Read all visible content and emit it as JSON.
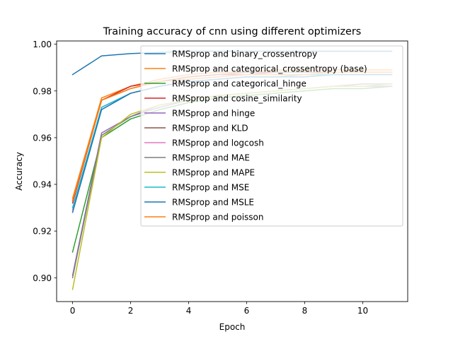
{
  "chart_data": {
    "type": "line",
    "title": "Training accuracy of cnn using different optimizers",
    "xlabel": "Epoch",
    "ylabel": "Accuracy",
    "xlim": [
      -0.55,
      11.55
    ],
    "ylim": [
      0.8898,
      1.0014
    ],
    "xticks": [
      0,
      2,
      4,
      6,
      8,
      10
    ],
    "yticks": [
      0.9,
      0.92,
      0.94,
      0.96,
      0.98,
      1.0
    ],
    "xtick_labels": [
      "0",
      "2",
      "4",
      "6",
      "8",
      "10"
    ],
    "ytick_labels": [
      "0.90",
      "0.92",
      "0.94",
      "0.96",
      "0.98",
      "1.00"
    ],
    "grid": false,
    "legend_position": "upper-right",
    "x": [
      0,
      1,
      2,
      3,
      4,
      5,
      6,
      7,
      8,
      9,
      10,
      11
    ],
    "series": [
      {
        "name": "RMSprop and binary_crossentropy",
        "color": "#1f77b4",
        "values": [
          0.987,
          0.995,
          0.996,
          0.9965,
          0.997,
          0.997,
          0.997,
          0.997,
          0.997,
          0.997,
          0.997,
          0.997
        ]
      },
      {
        "name": "RMSprop and categorical_crossentropy (base)",
        "color": "#ff7f0e",
        "values": [
          0.934,
          0.977,
          0.982,
          0.985,
          0.987,
          0.988,
          0.988,
          0.989,
          0.989,
          0.989,
          0.989,
          0.989
        ]
      },
      {
        "name": "RMSprop and categorical_hinge",
        "color": "#2ca02c",
        "values": [
          0.911,
          0.96,
          0.968,
          0.972,
          0.975,
          0.977,
          0.978,
          0.979,
          0.98,
          0.981,
          0.981,
          0.982
        ]
      },
      {
        "name": "RMSprop and cosine_similarity",
        "color": "#d62728",
        "values": [
          0.932,
          0.976,
          0.982,
          0.984,
          0.986,
          0.987,
          0.987,
          0.988,
          0.988,
          0.988,
          0.988,
          0.988
        ]
      },
      {
        "name": "RMSprop and hinge",
        "color": "#9467bd",
        "values": [
          0.901,
          0.962,
          0.969,
          0.973,
          0.976,
          0.978,
          0.979,
          0.98,
          0.981,
          0.982,
          0.982,
          0.982
        ]
      },
      {
        "name": "RMSprop and KLD",
        "color": "#8c564b",
        "values": [
          0.933,
          0.976,
          0.981,
          0.984,
          0.986,
          0.987,
          0.988,
          0.988,
          0.988,
          0.988,
          0.988,
          0.988
        ]
      },
      {
        "name": "RMSprop and logcosh",
        "color": "#e377c2",
        "values": [
          0.929,
          0.973,
          0.979,
          0.982,
          0.984,
          0.985,
          0.986,
          0.986,
          0.986,
          0.987,
          0.987,
          0.987
        ]
      },
      {
        "name": "RMSprop and MAE",
        "color": "#7f7f7f",
        "values": [
          0.9,
          0.961,
          0.969,
          0.974,
          0.976,
          0.978,
          0.979,
          0.98,
          0.981,
          0.982,
          0.983,
          0.983
        ]
      },
      {
        "name": "RMSprop and MAPE",
        "color": "#bcbd22",
        "values": [
          0.895,
          0.96,
          0.97,
          0.974,
          0.976,
          0.978,
          0.979,
          0.98,
          0.981,
          0.982,
          0.982,
          0.983
        ]
      },
      {
        "name": "RMSprop and MSE",
        "color": "#17becf",
        "values": [
          0.93,
          0.973,
          0.979,
          0.982,
          0.984,
          0.985,
          0.986,
          0.986,
          0.987,
          0.987,
          0.987,
          0.987
        ]
      },
      {
        "name": "RMSprop and MSLE",
        "color": "#1f77b4",
        "values": [
          0.928,
          0.972,
          0.979,
          0.982,
          0.984,
          0.985,
          0.986,
          0.986,
          0.986,
          0.987,
          0.987,
          0.987
        ]
      },
      {
        "name": "RMSprop and poisson",
        "color": "#ff7f0e",
        "values": [
          0.933,
          0.976,
          0.981,
          0.984,
          0.985,
          0.986,
          0.987,
          0.987,
          0.987,
          0.988,
          0.988,
          0.988
        ]
      }
    ]
  }
}
